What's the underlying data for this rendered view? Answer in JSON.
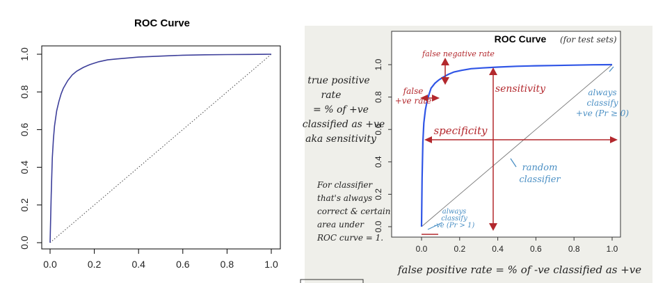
{
  "chart_data": [
    {
      "type": "line",
      "title": "ROC Curve",
      "xlabel": "",
      "ylabel": "",
      "xlim": [
        0,
        1
      ],
      "ylim": [
        0,
        1
      ],
      "x_ticks": [
        "0.0",
        "0.2",
        "0.4",
        "0.6",
        "0.8",
        "1.0"
      ],
      "y_ticks": [
        "0.0",
        "0.2",
        "0.4",
        "0.6",
        "0.8",
        "1.0"
      ],
      "grid": false,
      "series": [
        {
          "x": [
            0,
            0.005,
            0.01,
            0.015,
            0.02,
            0.03,
            0.04,
            0.05,
            0.06,
            0.08,
            0.1,
            0.12,
            0.15,
            0.18,
            0.22,
            0.26,
            0.3,
            0.35,
            0.4,
            0.5,
            0.6,
            0.7,
            0.8,
            0.9,
            1.0
          ],
          "y": [
            0,
            0.25,
            0.45,
            0.55,
            0.62,
            0.7,
            0.75,
            0.79,
            0.82,
            0.86,
            0.89,
            0.91,
            0.93,
            0.945,
            0.96,
            0.97,
            0.975,
            0.98,
            0.985,
            0.99,
            0.995,
            0.997,
            0.998,
            0.999,
            1.0
          ]
        },
        {
          "x": [
            0,
            1
          ],
          "y": [
            0,
            1
          ]
        }
      ],
      "colors": {
        "curve": "#3d3f9a",
        "diagonal": "#444444"
      }
    },
    {
      "type": "line",
      "title": "ROC Curve",
      "title_note": "(for test sets)",
      "xlabel": "false positive rate = % of -ve classified as +ve",
      "ylabel": "",
      "xlim": [
        0,
        1
      ],
      "ylim": [
        0,
        1
      ],
      "x_ticks": [
        "0.0",
        "0.2",
        "0.4",
        "0.6",
        "0.8",
        "1.0"
      ],
      "y_ticks": [
        "0.0",
        "0.2",
        "0.4",
        "0.6",
        "0.8",
        "1.0"
      ],
      "grid": false,
      "series": [
        {
          "x": [
            0,
            0.003,
            0.007,
            0.012,
            0.02,
            0.03,
            0.04,
            0.05,
            0.07,
            0.09,
            0.11,
            0.14,
            0.17,
            0.21,
            0.26,
            0.32,
            0.4,
            0.5,
            0.6,
            0.7,
            0.8,
            0.9,
            1.0
          ],
          "y": [
            0,
            0.3,
            0.52,
            0.64,
            0.72,
            0.78,
            0.82,
            0.855,
            0.885,
            0.905,
            0.92,
            0.94,
            0.955,
            0.965,
            0.975,
            0.98,
            0.985,
            0.99,
            0.993,
            0.995,
            0.997,
            0.999,
            1.0
          ]
        },
        {
          "x": [
            0,
            1
          ],
          "y": [
            0,
            1
          ]
        }
      ],
      "annotations": {
        "tpr_note": [
          "true positive",
          "rate",
          "= % of +ve",
          "classified as +ve",
          "aka sensitivity"
        ],
        "classifier_note": [
          "For classifier",
          "that's always",
          "correct & certain",
          "area under",
          "ROC curve = 1."
        ],
        "false_neg": "false negative rate",
        "false_pos": [
          "false",
          "+ve rate"
        ],
        "sensitivity": "sensitivity",
        "specificity": "specificity",
        "always_pos": [
          "always",
          "classify",
          "+ve (Pr ≥ 0)"
        ],
        "random": [
          "random",
          "classifier"
        ],
        "always_neg": [
          "always",
          "classify",
          "-ve (Pr > 1)"
        ]
      },
      "colors": {
        "curve": "#2f55e6",
        "diagonal": "#777777",
        "red": "#b3282d",
        "blue": "#4a8fc4",
        "ink": "#222222",
        "paper": "#efefea"
      }
    }
  ]
}
